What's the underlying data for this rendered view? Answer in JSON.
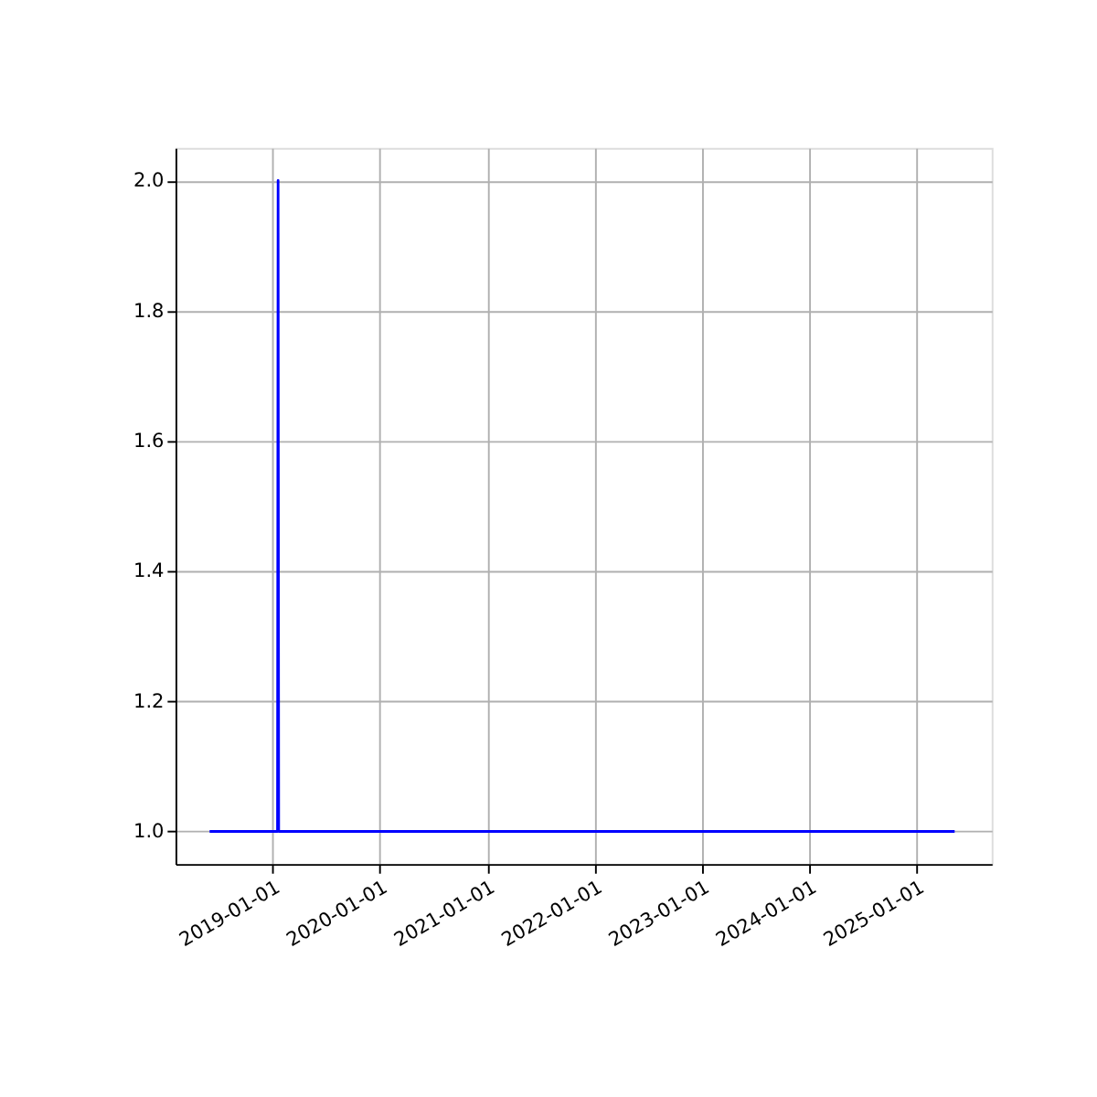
{
  "chart_data": {
    "type": "line",
    "x": [
      "2018-06-01",
      "2019-01-18",
      "2019-01-20",
      "2019-01-22",
      "2025-05-10"
    ],
    "series": [
      {
        "color": "#0000ff",
        "values": [
          1,
          1,
          2,
          1,
          1
        ]
      }
    ],
    "xlim": [
      "2018-02-05",
      "2025-09-13"
    ],
    "xticks": [
      "2019-01-01",
      "2020-01-01",
      "2021-01-01",
      "2022-01-01",
      "2023-01-01",
      "2024-01-01",
      "2025-01-01"
    ],
    "ylim": [
      0.95,
      2.05
    ],
    "yticks": [
      {
        "value": 1,
        "label": "1.0"
      },
      {
        "value": 1.2,
        "label": "1.2"
      },
      {
        "value": 1.4,
        "label": "1.4"
      },
      {
        "value": 1.6,
        "label": "1.6"
      },
      {
        "value": 1.8,
        "label": "1.8"
      },
      {
        "value": 2,
        "label": "2.0"
      }
    ],
    "grid": true,
    "line_style": "solid",
    "marker": "none"
  }
}
